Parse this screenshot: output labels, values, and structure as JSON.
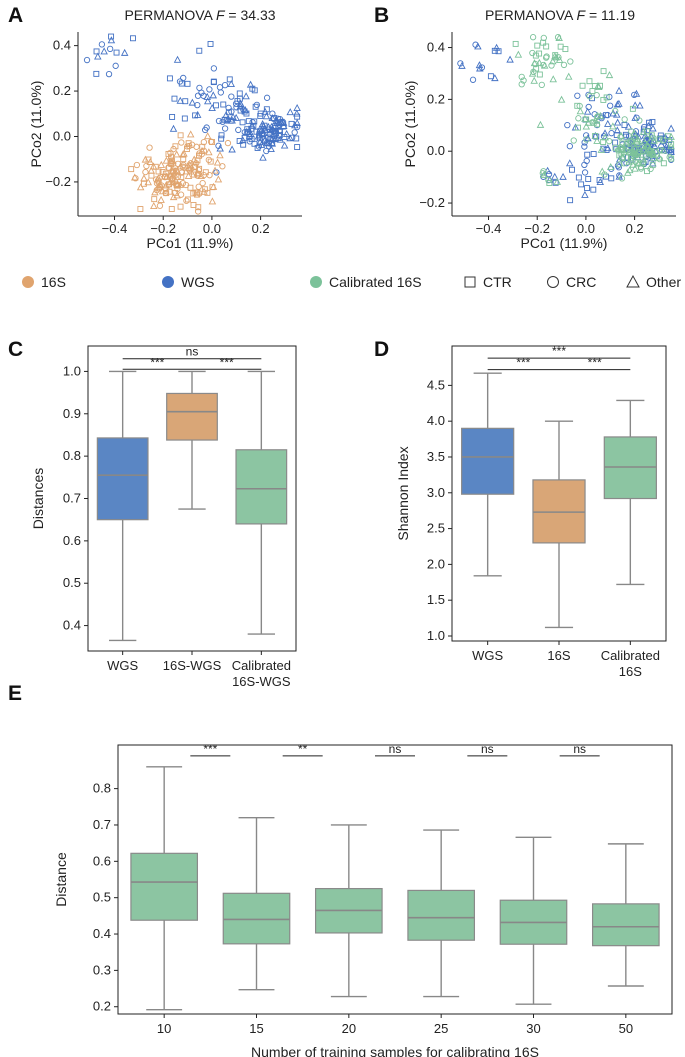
{
  "colors": {
    "s16": "#E0A46E",
    "wgs": "#4472C4",
    "cal": "#7CC29A",
    "box_16s": "#D9A677",
    "box_wgs": "#5A86C4",
    "box_cal": "#8CC5A2",
    "median": "#888888",
    "whisker": "#888888"
  },
  "panels": {
    "A": {
      "letter": "A",
      "title_prefix": "PERMANOVA ",
      "title_F": "F",
      "title_value": " = 34.33"
    },
    "B": {
      "letter": "B",
      "title_prefix": "PERMANOVA ",
      "title_F": "F",
      "title_value": " = 11.19"
    },
    "C": {
      "letter": "C"
    },
    "D": {
      "letter": "D"
    },
    "E": {
      "letter": "E"
    }
  },
  "legend": {
    "items": [
      {
        "label": "16S",
        "kind": "dot",
        "color": "#E0A46E"
      },
      {
        "label": "WGS",
        "kind": "dot",
        "color": "#4472C4"
      },
      {
        "label": "Calibrated 16S",
        "kind": "dot",
        "color": "#7CC29A"
      },
      {
        "label": "CTR",
        "kind": "square"
      },
      {
        "label": "CRC",
        "kind": "circle"
      },
      {
        "label": "Other",
        "kind": "triangle"
      }
    ]
  },
  "chart_data": [
    {
      "id": "A",
      "type": "scatter",
      "title": "PERMANOVA F = 34.33",
      "xlabel": "PCo1 (11.9%)",
      "ylabel": "PCo2 (11.0%)",
      "xlim": [
        -0.55,
        0.37
      ],
      "ylim": [
        -0.35,
        0.46
      ],
      "xticks": [
        -0.4,
        -0.2,
        0.0,
        0.2
      ],
      "yticks": [
        -0.2,
        0.0,
        0.2,
        0.4
      ],
      "tick_labels_x": [
        "−0.4",
        "−0.2",
        "0.0",
        "0.2"
      ],
      "tick_labels_y": [
        "−0.2",
        "0.0",
        "0.2",
        "0.4"
      ],
      "series": [
        {
          "name": "WGS",
          "color": "#4472C4",
          "clusters": [
            {
              "cx": 0.24,
              "cy": 0.02,
              "sx": 0.06,
              "sy": 0.04,
              "n": 110
            },
            {
              "cx": 0.08,
              "cy": 0.1,
              "sx": 0.09,
              "sy": 0.08,
              "n": 60
            },
            {
              "cx": -0.05,
              "cy": 0.22,
              "sx": 0.08,
              "sy": 0.08,
              "n": 25
            },
            {
              "cx": -0.4,
              "cy": 0.34,
              "sx": 0.06,
              "sy": 0.06,
              "n": 14
            }
          ]
        },
        {
          "name": "16S",
          "color": "#E0A46E",
          "clusters": [
            {
              "cx": -0.15,
              "cy": -0.18,
              "sx": 0.07,
              "sy": 0.07,
              "n": 150
            },
            {
              "cx": -0.05,
              "cy": -0.08,
              "sx": 0.05,
              "sy": 0.05,
              "n": 30
            }
          ]
        }
      ]
    },
    {
      "id": "B",
      "type": "scatter",
      "title": "PERMANOVA F = 11.19",
      "xlabel": "PCo1 (11.9%)",
      "ylabel": "PCo2 (11.0%)",
      "xlim": [
        -0.55,
        0.37
      ],
      "ylim": [
        -0.25,
        0.46
      ],
      "xticks": [
        -0.4,
        -0.2,
        0.0,
        0.2
      ],
      "yticks": [
        -0.2,
        0.0,
        0.2,
        0.4
      ],
      "tick_labels_x": [
        "−0.4",
        "−0.2",
        "0.0",
        "0.2"
      ],
      "tick_labels_y": [
        "−0.2",
        "0.0",
        "0.2",
        "0.4"
      ],
      "series": [
        {
          "name": "WGS",
          "color": "#4472C4",
          "clusters": [
            {
              "cx": 0.24,
              "cy": 0.02,
              "sx": 0.06,
              "sy": 0.04,
              "n": 90
            },
            {
              "cx": 0.08,
              "cy": 0.1,
              "sx": 0.09,
              "sy": 0.08,
              "n": 55
            },
            {
              "cx": -0.05,
              "cy": -0.08,
              "sx": 0.08,
              "sy": 0.06,
              "n": 25
            },
            {
              "cx": -0.4,
              "cy": 0.34,
              "sx": 0.06,
              "sy": 0.06,
              "n": 14
            }
          ]
        },
        {
          "name": "Calibrated 16S",
          "color": "#7CC29A",
          "clusters": [
            {
              "cx": 0.22,
              "cy": 0.0,
              "sx": 0.07,
              "sy": 0.05,
              "n": 110
            },
            {
              "cx": -0.17,
              "cy": 0.36,
              "sx": 0.07,
              "sy": 0.05,
              "n": 40
            },
            {
              "cx": 0.02,
              "cy": 0.18,
              "sx": 0.07,
              "sy": 0.07,
              "n": 40
            },
            {
              "cx": -0.18,
              "cy": -0.1,
              "sx": 0.04,
              "sy": 0.04,
              "n": 6
            }
          ]
        }
      ]
    },
    {
      "id": "C",
      "type": "box",
      "ylabel": "Distances",
      "ylim": [
        0.34,
        1.06
      ],
      "yticks": [
        0.4,
        0.5,
        0.6,
        0.7,
        0.8,
        0.9,
        1.0
      ],
      "tick_labels_y": [
        "0.4",
        "0.5",
        "0.6",
        "0.7",
        "0.8",
        "0.9",
        "1.0"
      ],
      "categories": [
        "WGS",
        "16S-WGS",
        "Calibrated\n16S-WGS"
      ],
      "boxes": [
        {
          "min": 0.365,
          "q1": 0.65,
          "median": 0.755,
          "q3": 0.843,
          "max": 1.0,
          "color": "#5A86C4"
        },
        {
          "min": 0.675,
          "q1": 0.838,
          "median": 0.905,
          "q3": 0.948,
          "max": 1.0,
          "color": "#D9A677"
        },
        {
          "min": 0.38,
          "q1": 0.64,
          "median": 0.723,
          "q3": 0.815,
          "max": 1.0,
          "color": "#8CC5A2"
        }
      ],
      "significance": [
        {
          "from": 0,
          "to": 1,
          "label": "***",
          "y": 1.005
        },
        {
          "from": 1,
          "to": 2,
          "label": "***",
          "y": 1.005
        },
        {
          "from": 0,
          "to": 2,
          "label": "ns",
          "y": 1.03
        }
      ]
    },
    {
      "id": "D",
      "type": "box",
      "ylabel": "Shannon Index",
      "ylim": [
        0.93,
        5.05
      ],
      "yticks": [
        1.0,
        1.5,
        2.0,
        2.5,
        3.0,
        3.5,
        4.0,
        4.5
      ],
      "tick_labels_y": [
        "1.0",
        "1.5",
        "2.0",
        "2.5",
        "3.0",
        "3.5",
        "4.0",
        "4.5"
      ],
      "categories": [
        "WGS",
        "16S",
        "Calibrated\n16S"
      ],
      "boxes": [
        {
          "min": 1.84,
          "q1": 2.98,
          "median": 3.5,
          "q3": 3.9,
          "max": 4.67,
          "color": "#5A86C4"
        },
        {
          "min": 1.12,
          "q1": 2.3,
          "median": 2.73,
          "q3": 3.18,
          "max": 4.0,
          "color": "#D9A677"
        },
        {
          "min": 1.72,
          "q1": 2.92,
          "median": 3.36,
          "q3": 3.78,
          "max": 4.29,
          "color": "#8CC5A2"
        }
      ],
      "significance": [
        {
          "from": 0,
          "to": 1,
          "label": "***",
          "y": 4.72
        },
        {
          "from": 1,
          "to": 2,
          "label": "***",
          "y": 4.72
        },
        {
          "from": 0,
          "to": 2,
          "label": "***",
          "y": 4.88
        }
      ]
    },
    {
      "id": "E",
      "type": "box",
      "ylabel": "Distance",
      "xlabel": "Number of training samples for calibrating 16S",
      "ylim": [
        0.18,
        0.92
      ],
      "yticks": [
        0.2,
        0.3,
        0.4,
        0.5,
        0.6,
        0.7,
        0.8
      ],
      "tick_labels_y": [
        "0.2",
        "0.3",
        "0.4",
        "0.5",
        "0.6",
        "0.7",
        "0.8"
      ],
      "categories": [
        "10",
        "15",
        "20",
        "25",
        "30",
        "50"
      ],
      "boxes": [
        {
          "min": 0.192,
          "q1": 0.438,
          "median": 0.543,
          "q3": 0.622,
          "max": 0.86,
          "color": "#8CC5A2"
        },
        {
          "min": 0.247,
          "q1": 0.373,
          "median": 0.44,
          "q3": 0.512,
          "max": 0.72,
          "color": "#8CC5A2"
        },
        {
          "min": 0.228,
          "q1": 0.403,
          "median": 0.465,
          "q3": 0.525,
          "max": 0.7,
          "color": "#8CC5A2"
        },
        {
          "min": 0.228,
          "q1": 0.383,
          "median": 0.445,
          "q3": 0.52,
          "max": 0.686,
          "color": "#8CC5A2"
        },
        {
          "min": 0.207,
          "q1": 0.372,
          "median": 0.432,
          "q3": 0.493,
          "max": 0.666,
          "color": "#8CC5A2"
        },
        {
          "min": 0.257,
          "q1": 0.368,
          "median": 0.42,
          "q3": 0.483,
          "max": 0.648,
          "color": "#8CC5A2"
        }
      ],
      "significance": [
        {
          "between": [
            0,
            1
          ],
          "label": "***",
          "y": 0.89
        },
        {
          "between": [
            1,
            2
          ],
          "label": "**",
          "y": 0.89
        },
        {
          "between": [
            2,
            3
          ],
          "label": "ns",
          "y": 0.89
        },
        {
          "between": [
            3,
            4
          ],
          "label": "ns",
          "y": 0.89
        },
        {
          "between": [
            4,
            5
          ],
          "label": "ns",
          "y": 0.89
        }
      ]
    }
  ]
}
